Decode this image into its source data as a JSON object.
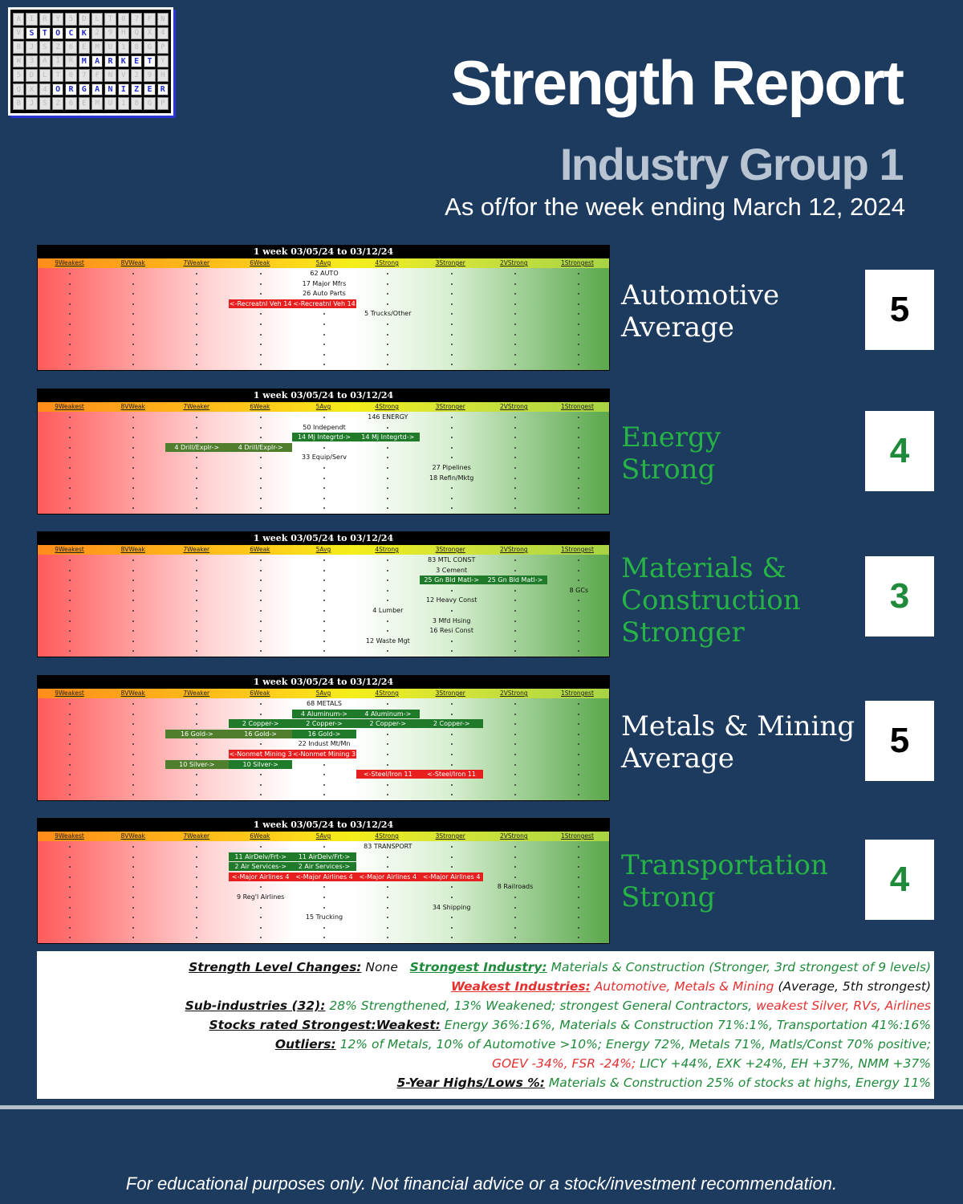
{
  "header": {
    "logo_rows": [
      "STOCK",
      "MARKET",
      "ORGANIZER"
    ],
    "title": "Strength Report",
    "subtitle": "Industry Group 1",
    "asof": "As of/for the week ending March 12, 2024"
  },
  "panel_title": "1 week 03/05/24 to 03/12/24",
  "columns": [
    "9Weakest",
    "8VWeak",
    "7Weaker",
    "6Weak",
    "5Avg",
    "4Strong",
    "3Stronger",
    "2VStrong",
    "1Strongest"
  ],
  "panels": [
    {
      "group_name": "Automotive",
      "level_name": "Average",
      "rating": "5",
      "color": "#ffffff",
      "items": [
        {
          "t": "62 AUTO",
          "col": 5,
          "row": 0
        },
        {
          "t": "17 Major Mfrs",
          "col": 5,
          "row": 1
        },
        {
          "t": "26 Auto Parts",
          "col": 5,
          "row": 2
        },
        {
          "t": "<-Recreatnl Veh 14",
          "col": 4,
          "row": 3,
          "box": "rd"
        },
        {
          "t": "<-Recreatnl Veh 14",
          "col": 5,
          "row": 3,
          "box": "rd"
        },
        {
          "t": "5 Trucks/Other",
          "col": 6,
          "row": 4
        }
      ]
    },
    {
      "group_name": "Energy",
      "level_name": "Strong",
      "rating": "4",
      "color": "#27b346",
      "items": [
        {
          "t": "146 ENERGY",
          "col": 6,
          "row": 0
        },
        {
          "t": "50 Independt",
          "col": 5,
          "row": 1
        },
        {
          "t": "14 Mj Integrtd->",
          "col": 5,
          "row": 2,
          "box": "dg"
        },
        {
          "t": "14 Mj Integrtd->",
          "col": 6,
          "row": 2,
          "box": "dg"
        },
        {
          "t": "4 Drill/Explr->",
          "col": 3,
          "row": 3,
          "box": "ol"
        },
        {
          "t": "4 Drill/Explr->",
          "col": 4,
          "row": 3,
          "box": "ol"
        },
        {
          "t": "33 Equip/Serv",
          "col": 5,
          "row": 4
        },
        {
          "t": "27 Pipelines",
          "col": 7,
          "row": 5
        },
        {
          "t": "18 Refin/Mktg",
          "col": 7,
          "row": 6
        }
      ]
    },
    {
      "group_name": "Materials & Construction",
      "level_name": "Stronger",
      "rating": "3",
      "color": "#27b346",
      "items": [
        {
          "t": "83 MTL CONST",
          "col": 7,
          "row": 0
        },
        {
          "t": "3 Cement",
          "col": 7,
          "row": 1
        },
        {
          "t": "25 Gn Bld Matl->",
          "col": 7,
          "row": 2,
          "box": "dg"
        },
        {
          "t": "25 Gn Bld Matl->",
          "col": 8,
          "row": 2,
          "box": "dg"
        },
        {
          "t": "8 GCs",
          "col": 9,
          "row": 3
        },
        {
          "t": "12 Heavy Const",
          "col": 7,
          "row": 4
        },
        {
          "t": "4 Lumber",
          "col": 6,
          "row": 5
        },
        {
          "t": "3 Mfd Hsing",
          "col": 7,
          "row": 6
        },
        {
          "t": "16 Resi Const",
          "col": 7,
          "row": 7
        },
        {
          "t": "12 Waste Mgt",
          "col": 6,
          "row": 8
        }
      ]
    },
    {
      "group_name": "Metals & Mining",
      "level_name": "Average",
      "rating": "5",
      "color": "#ffffff",
      "items": [
        {
          "t": "68 METALS",
          "col": 5,
          "row": 0
        },
        {
          "t": "4 Aluminum->",
          "col": 5,
          "row": 1,
          "box": "dg"
        },
        {
          "t": "4 Aluminum->",
          "col": 6,
          "row": 1,
          "box": "dg"
        },
        {
          "t": "2 Copper->",
          "col": 4,
          "row": 2,
          "box": "dg"
        },
        {
          "t": "2 Copper->",
          "col": 5,
          "row": 2,
          "box": "dg"
        },
        {
          "t": "2 Copper->",
          "col": 6,
          "row": 2,
          "box": "dg"
        },
        {
          "t": "2 Copper->",
          "col": 7,
          "row": 2,
          "box": "dg"
        },
        {
          "t": "16 Gold->",
          "col": 3,
          "row": 3,
          "box": "ol"
        },
        {
          "t": "16 Gold->",
          "col": 4,
          "row": 3,
          "box": "ol"
        },
        {
          "t": "16 Gold->",
          "col": 5,
          "row": 3,
          "box": "dg"
        },
        {
          "t": "22 Indust Mt/Mn",
          "col": 5,
          "row": 4
        },
        {
          "t": "<-Nonmet Mining 3",
          "col": 4,
          "row": 5,
          "box": "rd"
        },
        {
          "t": "<-Nonmet Mining 3",
          "col": 5,
          "row": 5,
          "box": "rd"
        },
        {
          "t": "10 Silver->",
          "col": 3,
          "row": 6,
          "box": "ol"
        },
        {
          "t": "10 Silver->",
          "col": 4,
          "row": 6,
          "box": "dg"
        },
        {
          "t": "<-Steel/Iron 11",
          "col": 6,
          "row": 7,
          "box": "rd"
        },
        {
          "t": "<-Steel/Iron 11",
          "col": 7,
          "row": 7,
          "box": "rd"
        }
      ]
    },
    {
      "group_name": "Transportation",
      "level_name": "Strong",
      "rating": "4",
      "color": "#27b346",
      "items": [
        {
          "t": "83 TRANSPORT",
          "col": 6,
          "row": 0
        },
        {
          "t": "11 AirDelv/Frt->",
          "col": 4,
          "row": 1,
          "box": "dg"
        },
        {
          "t": "11 AirDelv/Frt->",
          "col": 5,
          "row": 1,
          "box": "dg"
        },
        {
          "t": "2 Air Services->",
          "col": 4,
          "row": 2,
          "box": "dg"
        },
        {
          "t": "2 Air Services->",
          "col": 5,
          "row": 2,
          "box": "dg"
        },
        {
          "t": "<-Major Airlines 4",
          "col": 4,
          "row": 3,
          "box": "rd"
        },
        {
          "t": "<-Major Airlines 4",
          "col": 5,
          "row": 3,
          "box": "rd"
        },
        {
          "t": "<-Major Airlines 4",
          "col": 6,
          "row": 3,
          "box": "rd"
        },
        {
          "t": "<-Major Airlines 4",
          "col": 7,
          "row": 3,
          "box": "rd"
        },
        {
          "t": "8 Railroads",
          "col": 8,
          "row": 4
        },
        {
          "t": "9 Reg'l Airlines",
          "col": 4,
          "row": 5
        },
        {
          "t": "34 Shipping",
          "col": 7,
          "row": 6
        },
        {
          "t": "15 Trucking",
          "col": 5,
          "row": 7
        }
      ]
    }
  ],
  "summary": {
    "l1_label": "Strength Level Changes:",
    "l1_value": " None",
    "l1b_label": "Strongest Industry:",
    "l1b_value": " Materials & Construction (Stronger, 3rd strongest of 9 levels)",
    "l2_label": "Weakest Industries:",
    "l2_value": " Automotive, Metals & Mining",
    "l2_value2": " (Average, 5th strongest)",
    "l3_label": "Sub-industries (32):",
    "l3_value": " 28% Strengthened, 13% Weakened; strongest General Contractors,",
    "l3_value2": " weakest Silver, RVs, Airlines",
    "l4_label": "Stocks rated Strongest:Weakest:",
    "l4_value": " Energy 36%:16%, Materials & Construction 71%:1%, Transportation 41%:16%",
    "l5_label": "Outliers:",
    "l5_value": " 12% of Metals, 10% of Automotive >10%; Energy 72%, Metals 71%, Matls/Const 70% positive;",
    "l6_value": "GOEV -34%, FSR -24%;",
    "l6_value2": " LICY +44%, EXK +24%, EH +37%, NMM +37%",
    "l7_label": "5-Year Highs/Lows %:",
    "l7_value": " Materials & Construction 25% of stocks at highs, Energy 11%"
  },
  "disclaimer": "For educational purposes only. Not financial advice or a stock/investment recommendation."
}
